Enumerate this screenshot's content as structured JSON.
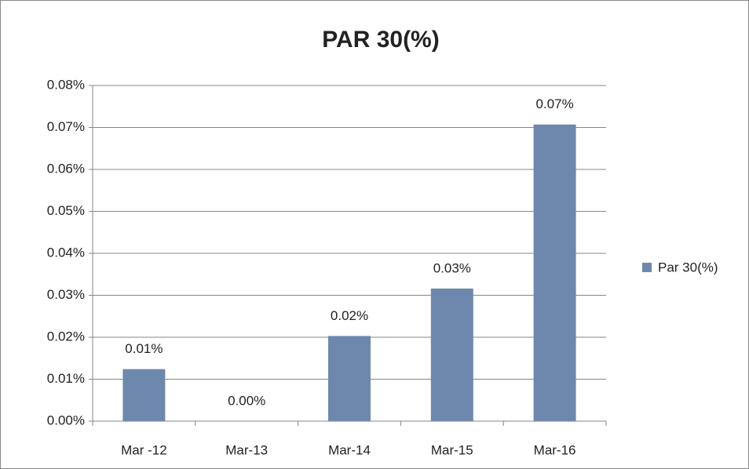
{
  "chart_data": {
    "type": "bar",
    "title": "PAR 30(%)",
    "categories": [
      "Mar -12",
      "Mar-13",
      "Mar-14",
      "Mar-15",
      "Mar-16"
    ],
    "series": [
      {
        "name": "Par 30(%)",
        "color": "#6e88ad",
        "values": [
          0.0124,
          0,
          0.0203,
          0.0316,
          0.0707
        ],
        "value_labels": [
          "0.01%",
          "0.00%",
          "0.02%",
          "0.03%",
          "0.07%"
        ]
      }
    ],
    "ylim": [
      0,
      0.08
    ],
    "yticks": [
      {
        "value": 0,
        "label": "0.00%"
      },
      {
        "value": 0.01,
        "label": "0.01%"
      },
      {
        "value": 0.02,
        "label": "0.02%"
      },
      {
        "value": 0.03,
        "label": "0.03%"
      },
      {
        "value": 0.04,
        "label": "0.04%"
      },
      {
        "value": 0.05,
        "label": "0.05%"
      },
      {
        "value": 0.06,
        "label": "0.06%"
      },
      {
        "value": 0.07,
        "label": "0.07%"
      },
      {
        "value": 0.08,
        "label": "0.08%"
      }
    ],
    "grid": true,
    "legend": "right"
  }
}
